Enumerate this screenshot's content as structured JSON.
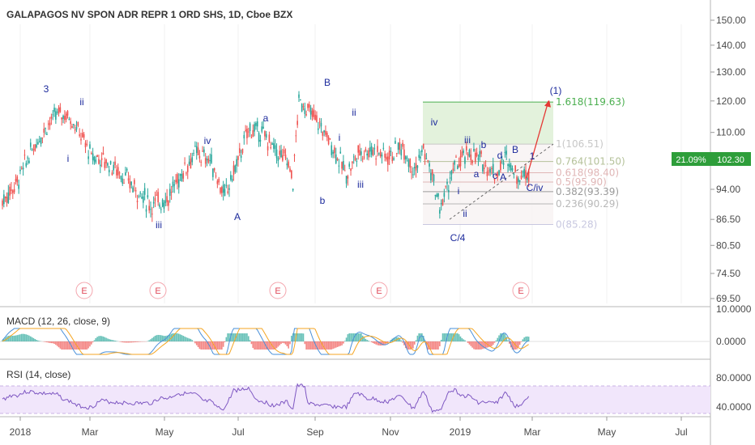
{
  "chart_title": "GALAPAGOS NV SPON ADR REPR 1 ORD SHS, 1D, Cboe BZX",
  "price_axis_labels": [
    "150.00",
    "140.00",
    "130.00",
    "120.00",
    "110.00",
    "94.00",
    "86.50",
    "80.50",
    "74.50",
    "69.50"
  ],
  "last_price": {
    "change": "21.09%",
    "value": "102.30"
  },
  "time_axis_labels": [
    "2018",
    "Mar",
    "May",
    "Jul",
    "Sep",
    "Nov",
    "2019",
    "Mar",
    "May",
    "Jul"
  ],
  "macd": {
    "label": "MACD (12, 26, close, 9)",
    "axis_labels": [
      "10.0000",
      "0.0000"
    ]
  },
  "rsi": {
    "label": "RSI (14, close)",
    "axis_labels": [
      "80.0000",
      "40.0000"
    ]
  },
  "earnings_marker": "E",
  "wave_labels": [
    "3",
    "ii",
    "i",
    "iii",
    "iv",
    "A",
    "a",
    "B",
    "ii",
    "i",
    "b",
    "iii",
    "iv",
    "i",
    "ii",
    "C/4",
    "iii",
    "b",
    "a",
    "c",
    "d",
    "A",
    "B",
    "1",
    "C/iv",
    "(1)"
  ],
  "fib_levels": [
    {
      "label": "1.618(119.63)",
      "price": 119.63,
      "color": "#4caf50"
    },
    {
      "label": "1(106.51)",
      "price": 106.51,
      "color": "#c8c8c8"
    },
    {
      "label": "0.764(101.50)",
      "price": 101.5,
      "color": "#b5c29a"
    },
    {
      "label": "0.618(98.40)",
      "price": 98.4,
      "color": "#e0b6b6"
    },
    {
      "label": "0.5(95.90)",
      "price": 95.9,
      "color": "#e0b6b6"
    },
    {
      "label": "0.382(93.39)",
      "price": 93.39,
      "color": "#9a9a9a"
    },
    {
      "label": "0.236(90.29)",
      "price": 90.29,
      "color": "#b8b8b8"
    },
    {
      "label": "0(85.28)",
      "price": 85.28,
      "color": "#c8c8e0"
    }
  ],
  "colors": {
    "up": "#26a69a",
    "down": "#ef5350",
    "wave": "#1c2a9c",
    "macd": "#4a90d9",
    "signal": "#f5a623",
    "rsi": "#7e57c2",
    "rsi_band": "#f1e6fb",
    "price_badge": "#2e9e3a",
    "projection": "#e53935"
  },
  "chart_data": {
    "type": "candlestick",
    "title": "GALAPAGOS NV SPON ADR REPR 1 ORD SHS, 1D, Cboe BZX",
    "x": [
      "2018-01",
      "2018-02",
      "2018-03",
      "2018-04",
      "2018-05",
      "2018-06",
      "2018-07",
      "2018-08",
      "2018-09",
      "2018-10",
      "2018-11",
      "2018-12",
      "2019-01",
      "2019-02",
      "2019-03"
    ],
    "close": [
      96,
      112,
      103,
      101,
      90,
      102,
      93,
      108,
      120,
      104,
      103,
      107,
      96,
      100,
      102.3
    ],
    "last_close": 102.3,
    "price_scale": "log",
    "ylim": [
      69.5,
      150
    ],
    "indicators": [
      "MACD (12, 26, close, 9)",
      "RSI (14, close)"
    ]
  }
}
